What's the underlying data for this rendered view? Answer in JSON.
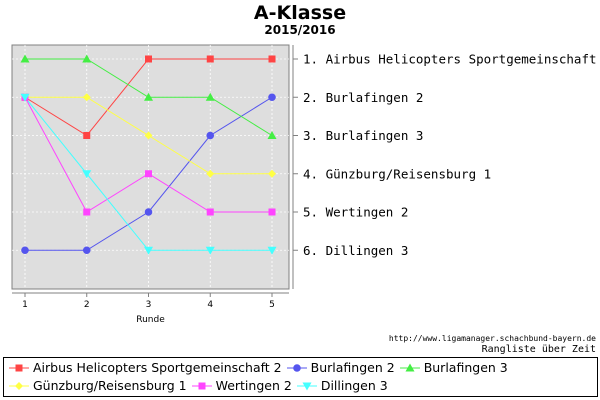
{
  "chart_data": {
    "type": "line",
    "title": "A-Klasse",
    "subtitle": "2015/2016",
    "xlabel": "Runde",
    "ylabel": "",
    "x": [
      1,
      2,
      3,
      4,
      5
    ],
    "ylim": [
      1,
      6
    ],
    "y_inverted": true,
    "grid": true,
    "legend": "bottom",
    "rank_labels": [
      "1. Airbus Helicopters Sportgemeinschaft 2",
      "2. Burlafingen 2",
      "3. Burlafingen 3",
      "4. Günzburg/Reisensburg 1",
      "5. Wertingen 2",
      "6. Dillingen 3"
    ],
    "series": [
      {
        "name": "Airbus Helicopters Sportgemeinschaft 2",
        "values": [
          2,
          3,
          1,
          1,
          1
        ],
        "color": "#ff4444",
        "marker": "square"
      },
      {
        "name": "Burlafingen 2",
        "values": [
          6,
          6,
          5,
          3,
          2
        ],
        "color": "#5555ee",
        "marker": "circle"
      },
      {
        "name": "Burlafingen 3",
        "values": [
          1,
          1,
          2,
          2,
          3
        ],
        "color": "#44ee44",
        "marker": "triangle-up"
      },
      {
        "name": "Günzburg/Reisensburg 1",
        "values": [
          2,
          2,
          3,
          4,
          4
        ],
        "color": "#ffff44",
        "marker": "diamond"
      },
      {
        "name": "Wertingen 2",
        "values": [
          2,
          5,
          4,
          5,
          5
        ],
        "color": "#ff44ff",
        "marker": "square"
      },
      {
        "name": "Dillingen 3",
        "values": [
          2,
          4,
          6,
          6,
          6
        ],
        "color": "#44ffff",
        "marker": "triangle-down"
      }
    ]
  },
  "footer": {
    "source": "http://www.ligamanager.schachbund-bayern.de",
    "caption": "Rangliste über Zeit"
  }
}
